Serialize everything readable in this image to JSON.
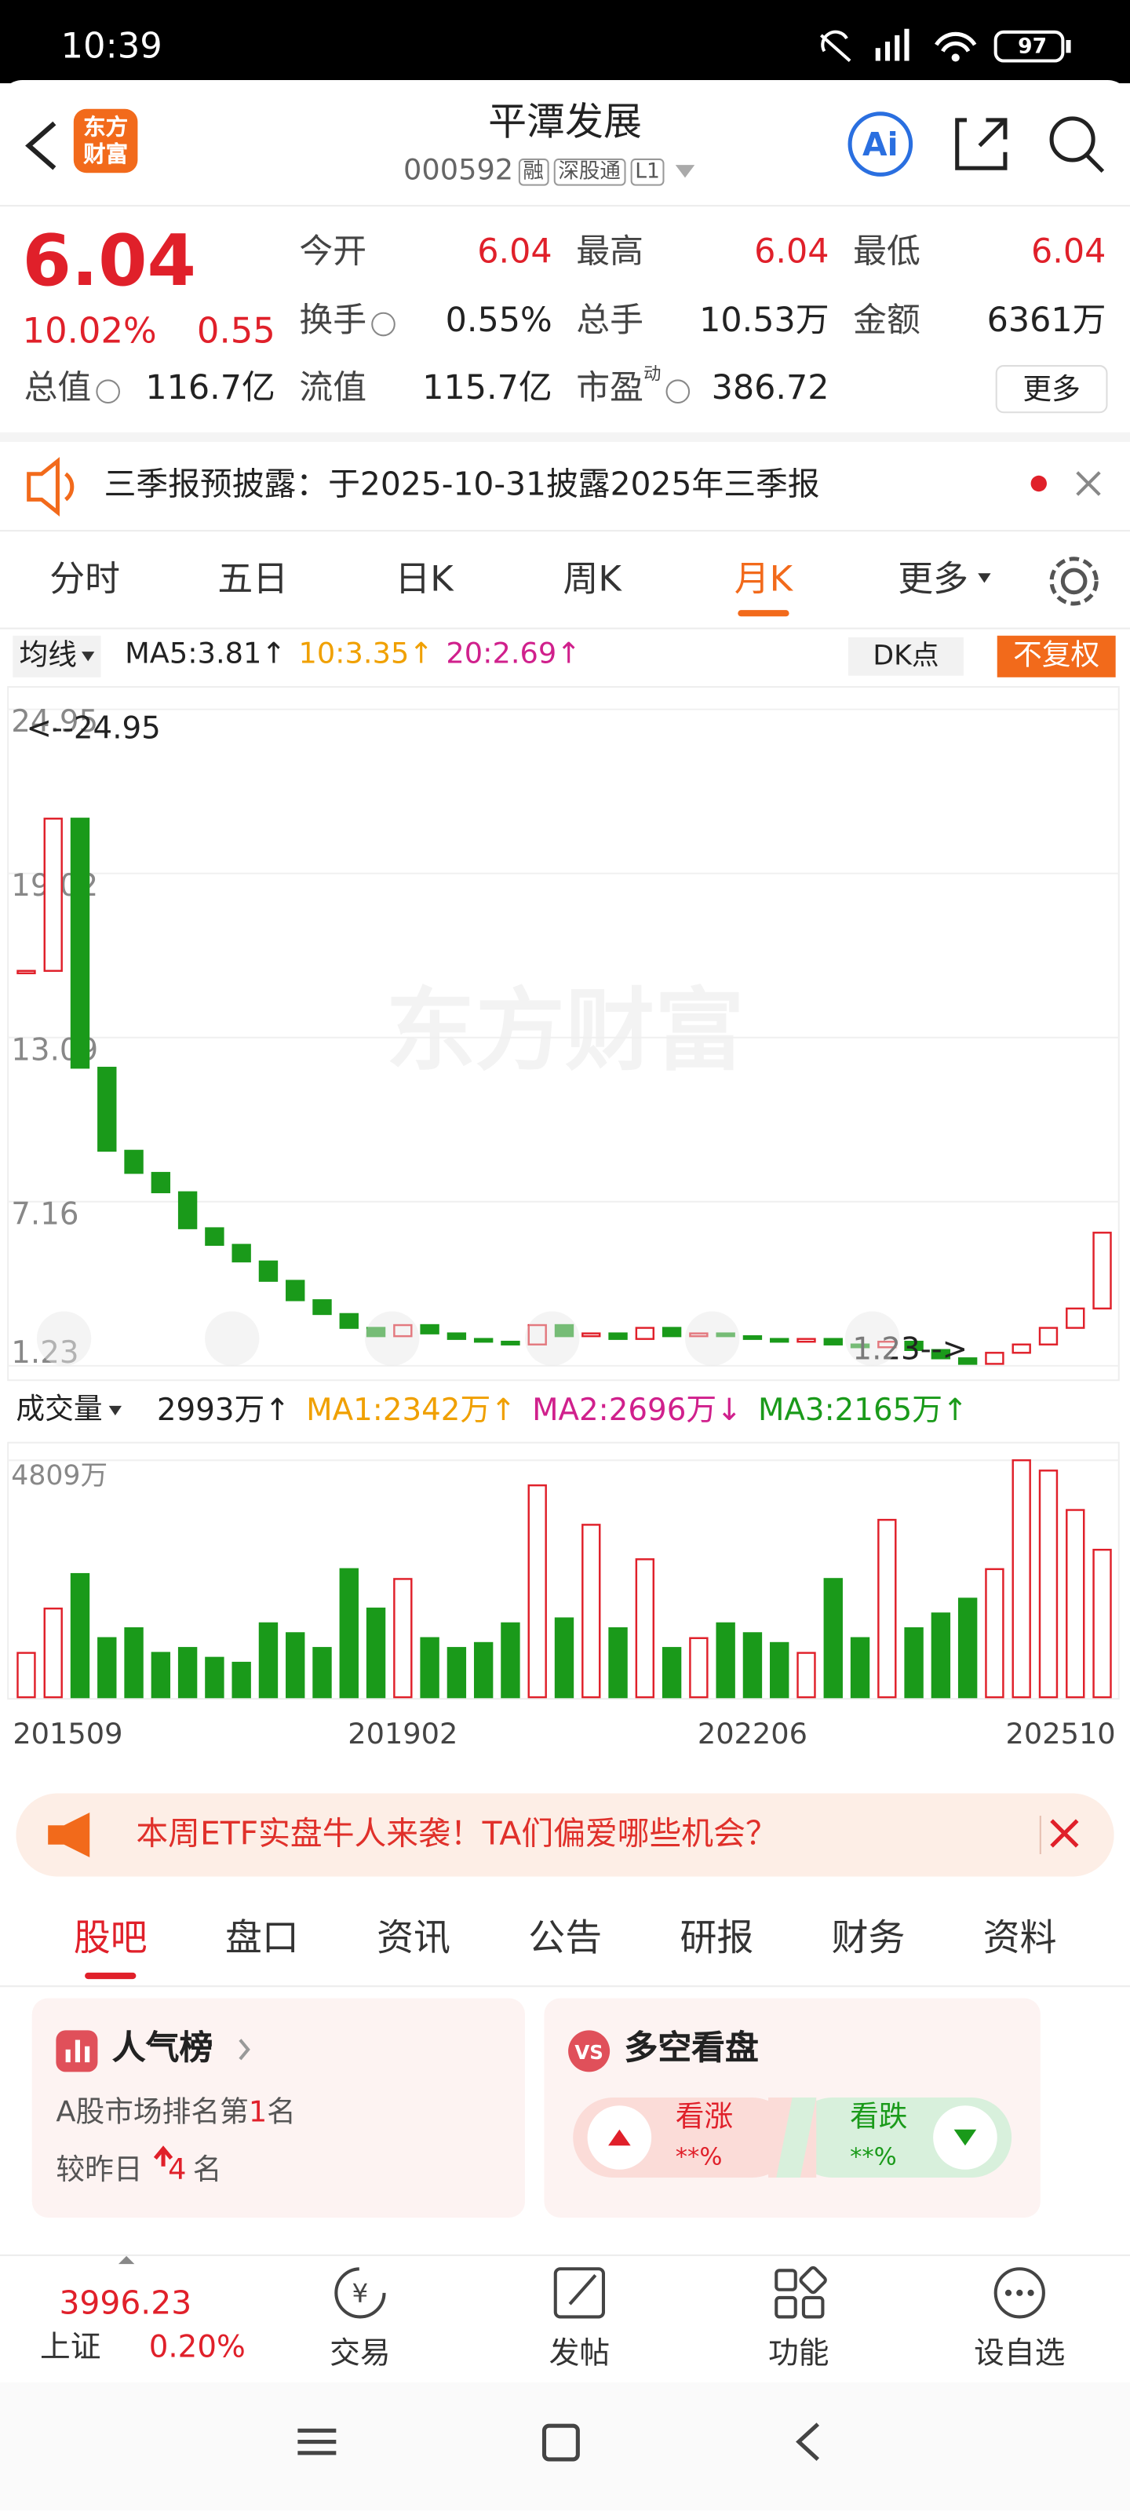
{
  "status_bar": {
    "time": "10:39",
    "battery": "97"
  },
  "header": {
    "logo": [
      "东方",
      "财富"
    ],
    "title": "平潭发展",
    "code": "000592",
    "badges": [
      "融",
      "深股通",
      "L1"
    ],
    "ai": "Ai"
  },
  "quote": {
    "price": "6.04",
    "change_pct": "10.02%",
    "change": "0.55",
    "rows": [
      [
        {
          "label": "今开",
          "value": "6.04",
          "color": "#e0202a"
        },
        {
          "label": "最高",
          "value": "6.04",
          "color": "#e0202a"
        },
        {
          "label": "最低",
          "value": "6.04",
          "color": "#e0202a"
        }
      ],
      [
        {
          "label": "换手",
          "value": "0.55%",
          "info": true
        },
        {
          "label": "总手",
          "value": "10.53万"
        },
        {
          "label": "金额",
          "value": "6361万"
        }
      ],
      [
        {
          "label": "总值",
          "value": "116.7亿",
          "info": true
        },
        {
          "label": "流值",
          "value": "115.7亿"
        },
        {
          "label": "市盈",
          "sup": "动",
          "value": "386.72",
          "info": true
        }
      ]
    ],
    "more": "更多"
  },
  "notice": {
    "text": "三季报预披露：于2025-10-31披露2025年三季报"
  },
  "period_tabs": {
    "items": [
      "分时",
      "五日",
      "日K",
      "周K",
      "月K",
      "更多"
    ],
    "active": "月K"
  },
  "chart_toolbar": {
    "ma_selector": "均线",
    "ma": [
      {
        "text": "MA5:3.81↑",
        "color": "#222222"
      },
      {
        "text": "10:3.35↑",
        "color": "#f0a000"
      },
      {
        "text": "20:2.69↑",
        "color": "#d0208c"
      }
    ],
    "dk": "DK点",
    "adjust": "不复权"
  },
  "watermark": "东方财富",
  "volume_toolbar": {
    "selector": "成交量",
    "items": [
      {
        "text": "2993万↑",
        "color": "#222222"
      },
      {
        "text": "MA1:2342万↑",
        "color": "#f0a000"
      },
      {
        "text": "MA2:2696万↓",
        "color": "#d0208c"
      },
      {
        "text": "MA3:2165万↑",
        "color": "#1a9a1a"
      }
    ]
  },
  "chart_data": {
    "type": "candlestick",
    "categories": [
      "201509",
      null,
      null,
      null,
      null,
      null,
      null,
      null,
      null,
      null,
      null,
      null,
      null,
      null,
      "201902",
      null,
      null,
      null,
      null,
      null,
      null,
      null,
      null,
      null,
      null,
      null,
      null,
      "202206",
      null,
      null,
      null,
      null,
      null,
      null,
      null,
      null,
      null,
      null,
      null,
      null,
      "202510"
    ],
    "close": [
      15.5,
      21.0,
      12.0,
      9.0,
      8.2,
      7.5,
      6.2,
      5.6,
      5.0,
      4.3,
      3.6,
      3.1,
      2.6,
      2.3,
      2.7,
      2.4,
      2.2,
      2.1,
      2.0,
      2.7,
      2.3,
      2.4,
      2.2,
      2.6,
      2.3,
      2.4,
      2.3,
      2.2,
      2.1,
      2.2,
      2.0,
      1.9,
      2.1,
      1.8,
      1.5,
      1.3,
      1.7,
      2.0,
      2.6,
      3.3,
      6.04
    ],
    "volume": [
      900,
      1800,
      2500,
      1200,
      1400,
      900,
      1000,
      800,
      700,
      1500,
      1300,
      1000,
      2600,
      1800,
      2400,
      1200,
      1000,
      1100,
      1500,
      4300,
      1600,
      3500,
      1400,
      2800,
      1000,
      1200,
      1500,
      1300,
      1100,
      900,
      2400,
      1200,
      3600,
      1400,
      1700,
      2000,
      2600,
      4809,
      4600,
      3800,
      2993
    ],
    "ylim": [
      1.23,
      24.95
    ],
    "yticks": [
      24.95,
      19.02,
      13.09,
      7.16,
      1.23
    ],
    "max_label": "<--24.95",
    "min_label": "1.23-->",
    "volume_ylim": [
      0,
      4809
    ],
    "volume_yticks": [
      {
        "value": 4809,
        "label": "4809万"
      }
    ],
    "up_color": "#e0202a",
    "down_color": "#1a9a1a"
  },
  "banner": {
    "text": "本周ETF实盘牛人来袭！TA们偏爱哪些机会？"
  },
  "content_tabs": {
    "items": [
      "股吧",
      "盘口",
      "资讯",
      "公告",
      "研报",
      "财务",
      "资料"
    ],
    "active": "股吧"
  },
  "popularity": {
    "title": "人气榜",
    "rank_prefix": "A股市场排名第",
    "rank": "1",
    "rank_suffix": "名",
    "change_prefix": "较昨日",
    "change": "4",
    "change_suffix": "名"
  },
  "sentiment": {
    "title": "多空看盘",
    "bull": "看涨",
    "bull_pct": "**%",
    "bear": "看跌",
    "bear_pct": "**%"
  },
  "bottom_bar": {
    "index_value": "3996.23",
    "index_name": "上证",
    "index_change": "0.20%",
    "actions": [
      "交易",
      "发帖",
      "功能",
      "设自选"
    ]
  }
}
